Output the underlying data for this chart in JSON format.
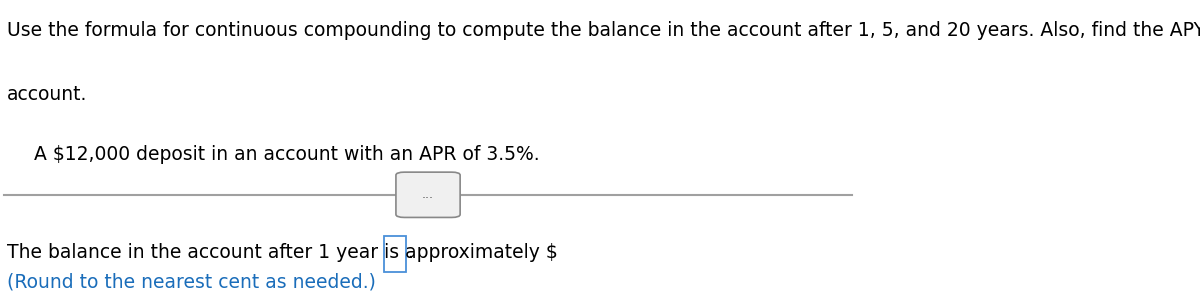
{
  "line1": "Use the formula for continuous compounding to compute the balance in the account after 1, 5, and 20 years. Also, find the APY for the",
  "line2": "account.",
  "subtext": "A $12,000 deposit in an account with an APR of 3.5%.",
  "bottom_text": "The balance in the account after 1 year is approximately $",
  "blue_text": "(Round to the nearest cent as needed.)",
  "dots": "...",
  "bg_color": "#ffffff",
  "text_color": "#000000",
  "blue_color": "#1a6dba",
  "divider_color": "#a0a0a0",
  "box_border_color": "#4a90d9",
  "font_size_main": 13.5,
  "font_size_sub": 13.5,
  "font_size_bottom": 13.5,
  "font_size_blue": 13.5
}
